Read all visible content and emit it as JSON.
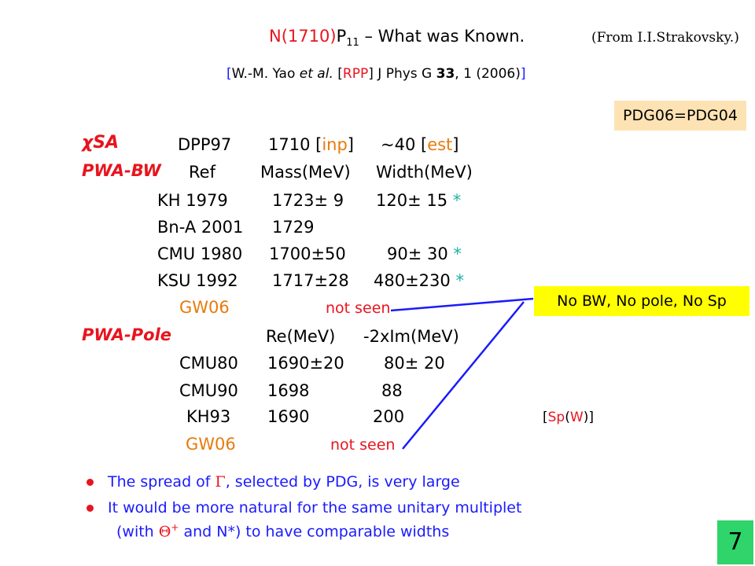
{
  "header": {
    "title_pre": "N",
    "title_mass": "(1710)",
    "title_mid": "P",
    "title_sub": "11",
    "title_post": " – What was Known.",
    "source_note": "(From I.I.Strakovsky.)",
    "ref_open": "[",
    "ref_authors": "W.-M. Yao ",
    "ref_etal": "et al.",
    "ref_b1": " [",
    "ref_rpp": "RPP",
    "ref_b2": "] J Phys G ",
    "ref_vol": "33",
    "ref_tail": ", 1 (2006)",
    "ref_close": "]"
  },
  "pdg_badge": "PDG06=PDG04",
  "no_bw_badge": "No BW, No pole, No Sp",
  "chi_sa": {
    "label": "χSA",
    "ref": "DPP97",
    "mass": "1710 [",
    "mass_tag": "inp",
    "mass_end": "]",
    "width": "~40 [",
    "width_tag": "est",
    "width_end": "]"
  },
  "pwa_bw": {
    "label": "PWA-BW",
    "headers": [
      "Ref",
      "Mass(MeV)",
      "Width(MeV)"
    ],
    "rows": [
      {
        "ref": "KH 1979",
        "mass": "1723± 9",
        "width": "120± 15",
        "star": "*"
      },
      {
        "ref": "Bn-A 2001",
        "mass": "1729",
        "width": "",
        "star": ""
      },
      {
        "ref": "CMU 1980",
        "mass": "1700±50",
        "width": "90± 30",
        "star": "*"
      },
      {
        "ref": "KSU 1992",
        "mass": "1717±28",
        "width": "480±230",
        "star": "*"
      }
    ],
    "gw06_ref": "GW06",
    "gw06_note": "not seen"
  },
  "pwa_pole": {
    "label": "PWA-Pole",
    "headers": [
      "Re(MeV)",
      "-2xIm(MeV)"
    ],
    "rows": [
      {
        "ref": "CMU80",
        "re": "1690±20",
        "im": "80± 20"
      },
      {
        "ref": "CMU90",
        "re": "1698",
        "im": "88"
      },
      {
        "ref": "KH93",
        "re": "1690",
        "im": "200"
      }
    ],
    "gw06_ref": "GW06",
    "gw06_note": "not seen",
    "sp_open": "[",
    "sp_a": "Sp",
    "sp_b": "(",
    "sp_w": "W",
    "sp_c": ")]"
  },
  "bullets": {
    "b1_pre": "The spread of ",
    "b1_sym": "Γ",
    "b1_post": ", selected by PDG, is very large",
    "b2_line1": "It would be more natural for the same unitary multiplet",
    "b2_pre": "(with ",
    "b2_sym": "Θ",
    "b2_sup": "+",
    "b2_mid": " and N*) to have comparable widths"
  },
  "page_number": "7",
  "colors": {
    "red": "#e8141e",
    "cyan": "#17b3a3",
    "orange": "#e87a0c",
    "blue": "#1a1aff",
    "pdg_badge_bg": "#fde3b4",
    "no_bw_badge_bg": "#ffff00",
    "page_badge_bg": "#2fd46a"
  }
}
